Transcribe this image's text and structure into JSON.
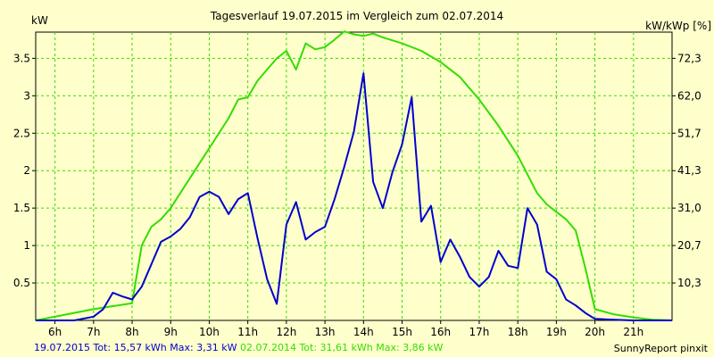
{
  "chart_data": {
    "type": "line",
    "title": "Tagesverlauf 19.07.2015 im Vergleich zum 02.07.2014",
    "ylabel_left": "kW",
    "ylabel_right": "kW/kWp [%]",
    "xlim": [
      5.5,
      22.0
    ],
    "ylim": [
      0,
      3.85
    ],
    "x_ticks": [
      "6h",
      "7h",
      "8h",
      "9h",
      "10h",
      "11h",
      "12h",
      "13h",
      "14h",
      "15h",
      "16h",
      "17h",
      "18h",
      "19h",
      "20h",
      "21h"
    ],
    "y_ticks_left": [
      "0.5",
      "1",
      "1.5",
      "2",
      "2.5",
      "3",
      "3.5"
    ],
    "y_ticks_left_values": [
      0.5,
      1,
      1.5,
      2,
      2.5,
      3,
      3.5
    ],
    "y_ticks_right": [
      "10,3",
      "20,7",
      "31,0",
      "41,3",
      "51,7",
      "62,0",
      "72,3"
    ],
    "y_ticks_right_values": [
      0.5,
      1,
      1.5,
      2,
      2.5,
      3,
      3.5
    ],
    "grid": true,
    "series": [
      {
        "name": "02.07.2014",
        "color": "#33dd00",
        "x": [
          5.5,
          7.0,
          8.0,
          8.25,
          8.5,
          8.75,
          9.0,
          9.5,
          10.0,
          10.5,
          10.75,
          11.0,
          11.25,
          11.5,
          11.75,
          12.0,
          12.25,
          12.5,
          12.75,
          13.0,
          13.25,
          13.5,
          13.75,
          14.0,
          14.25,
          14.5,
          15.0,
          15.5,
          16.0,
          16.5,
          17.0,
          17.5,
          18.0,
          18.5,
          18.75,
          19.0,
          19.25,
          19.5,
          19.75,
          20.0,
          20.5,
          21.0,
          21.5,
          22.0
        ],
        "y": [
          0,
          0.15,
          0.23,
          1.0,
          1.25,
          1.35,
          1.5,
          1.9,
          2.3,
          2.7,
          2.95,
          2.98,
          3.2,
          3.35,
          3.5,
          3.6,
          3.35,
          3.7,
          3.62,
          3.65,
          3.75,
          3.86,
          3.82,
          3.8,
          3.83,
          3.78,
          3.7,
          3.6,
          3.45,
          3.25,
          2.95,
          2.6,
          2.2,
          1.7,
          1.55,
          1.45,
          1.35,
          1.2,
          0.7,
          0.15,
          0.08,
          0.04,
          0.01,
          0
        ]
      },
      {
        "name": "19.07.2015",
        "color": "#0000cc",
        "x": [
          5.5,
          6.5,
          7.0,
          7.25,
          7.5,
          7.75,
          8.0,
          8.25,
          8.5,
          8.75,
          9.0,
          9.25,
          9.5,
          9.75,
          10.0,
          10.25,
          10.5,
          10.75,
          11.0,
          11.25,
          11.5,
          11.75,
          12.0,
          12.25,
          12.5,
          12.75,
          13.0,
          13.25,
          13.5,
          13.75,
          14.0,
          14.25,
          14.5,
          14.75,
          15.0,
          15.25,
          15.5,
          15.75,
          16.0,
          16.25,
          16.5,
          16.75,
          17.0,
          17.25,
          17.5,
          17.75,
          18.0,
          18.25,
          18.5,
          18.75,
          19.0,
          19.25,
          19.5,
          19.75,
          20.0,
          20.5,
          21.0,
          21.5,
          22.0
        ],
        "y": [
          0,
          0,
          0.05,
          0.15,
          0.37,
          0.32,
          0.28,
          0.45,
          0.75,
          1.05,
          1.12,
          1.22,
          1.38,
          1.65,
          1.72,
          1.65,
          1.42,
          1.62,
          1.7,
          1.1,
          0.55,
          0.22,
          1.28,
          1.58,
          1.08,
          1.18,
          1.25,
          1.62,
          2.05,
          2.52,
          3.3,
          1.85,
          1.5,
          1.98,
          2.35,
          2.98,
          1.32,
          1.53,
          0.78,
          1.08,
          0.85,
          0.58,
          0.45,
          0.58,
          0.93,
          0.73,
          0.7,
          1.5,
          1.28,
          0.65,
          0.55,
          0.28,
          0.2,
          0.1,
          0.02,
          0.01,
          0,
          0,
          0
        ]
      }
    ]
  },
  "footer": {
    "series1_label": "19.07.2015 Tot: 15,57 kWh Max: 3,31 kW",
    "series2_label": "02.07.2014 Tot: 31,61 kWh Max: 3,86 kW",
    "credit": "SunnyReport pinxit"
  },
  "colors": {
    "background": "#ffffcc",
    "grid": "#33dd00",
    "series1": "#0000cc",
    "series2": "#33dd00"
  }
}
